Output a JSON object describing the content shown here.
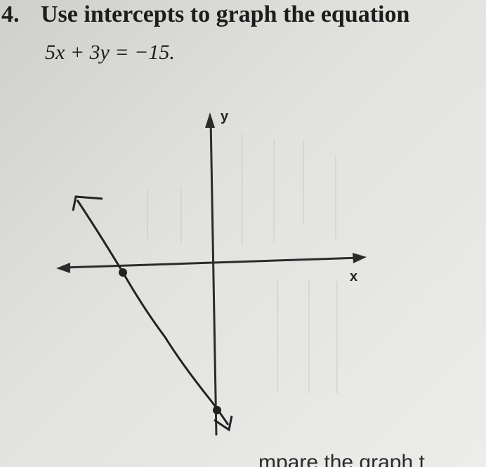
{
  "problem": {
    "number": "4.",
    "instruction": "Use intercepts to graph the equation",
    "equation": "5x + 3y = −15."
  },
  "graph": {
    "y_label": "y",
    "x_label": "x"
  },
  "footer": {
    "fragment": "mpare the graph t"
  }
}
